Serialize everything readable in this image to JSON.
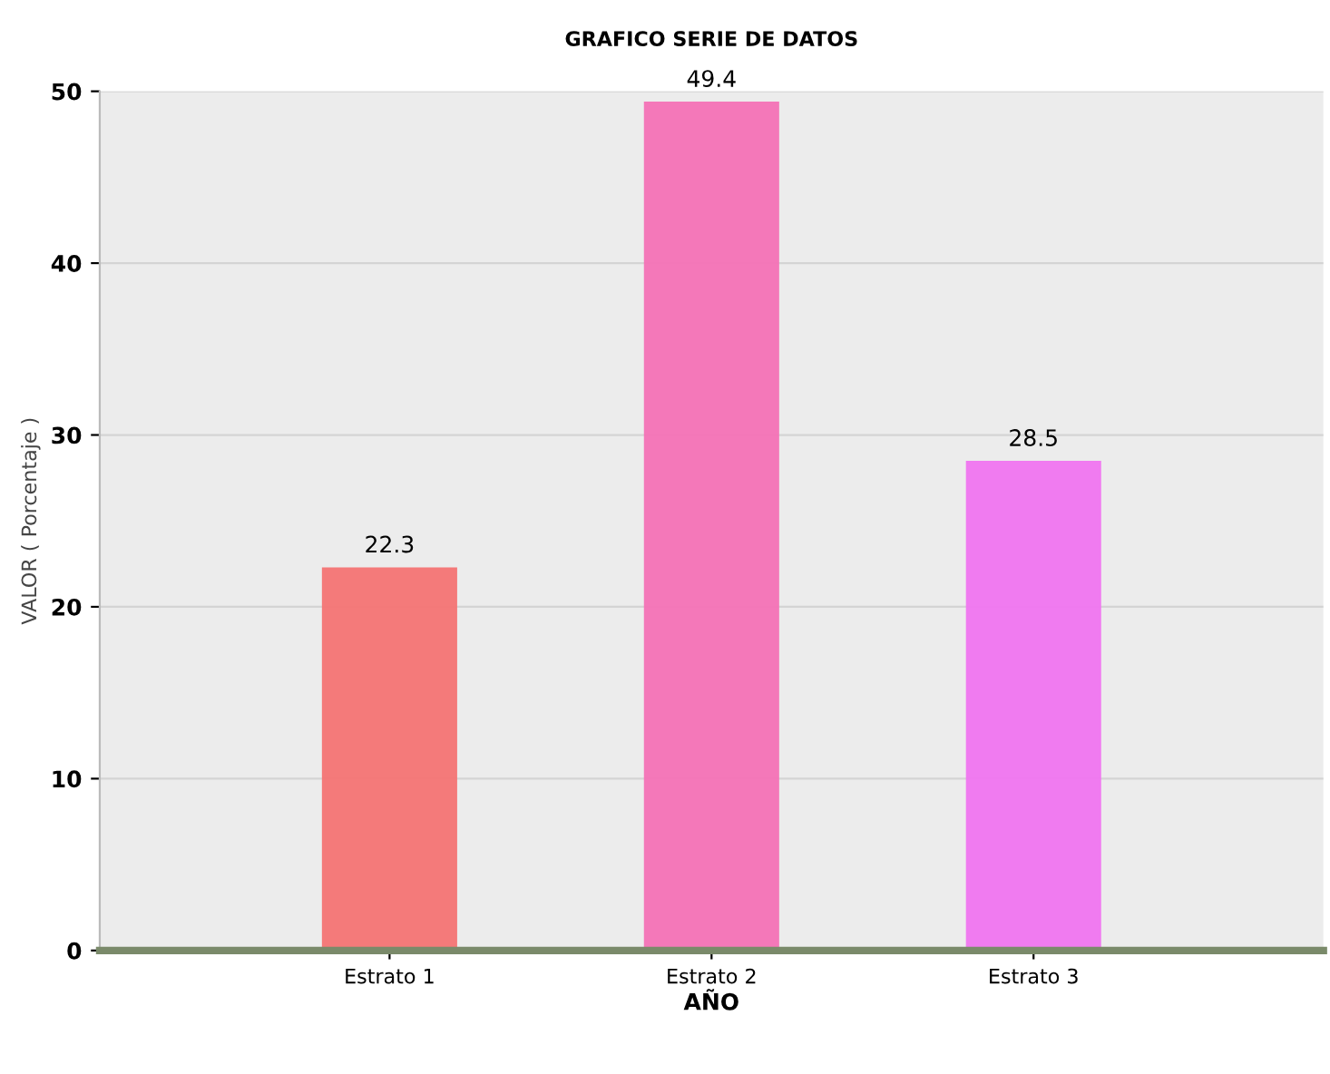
{
  "chart_data": {
    "type": "bar",
    "title": "GRAFICO SERIE DE DATOS",
    "xlabel": "AÑO",
    "ylabel": "VALOR ( Porcentaje )",
    "categories": [
      "Estrato 1",
      "Estrato 2",
      "Estrato 3"
    ],
    "values": [
      22.3,
      49.4,
      28.5
    ],
    "colors": [
      "#f47474",
      "#f472b6",
      "#f075f0"
    ],
    "ylim": [
      0,
      50
    ],
    "yticks": [
      0,
      10,
      20,
      30,
      40,
      50
    ],
    "grid": "y",
    "data_labels": true
  }
}
